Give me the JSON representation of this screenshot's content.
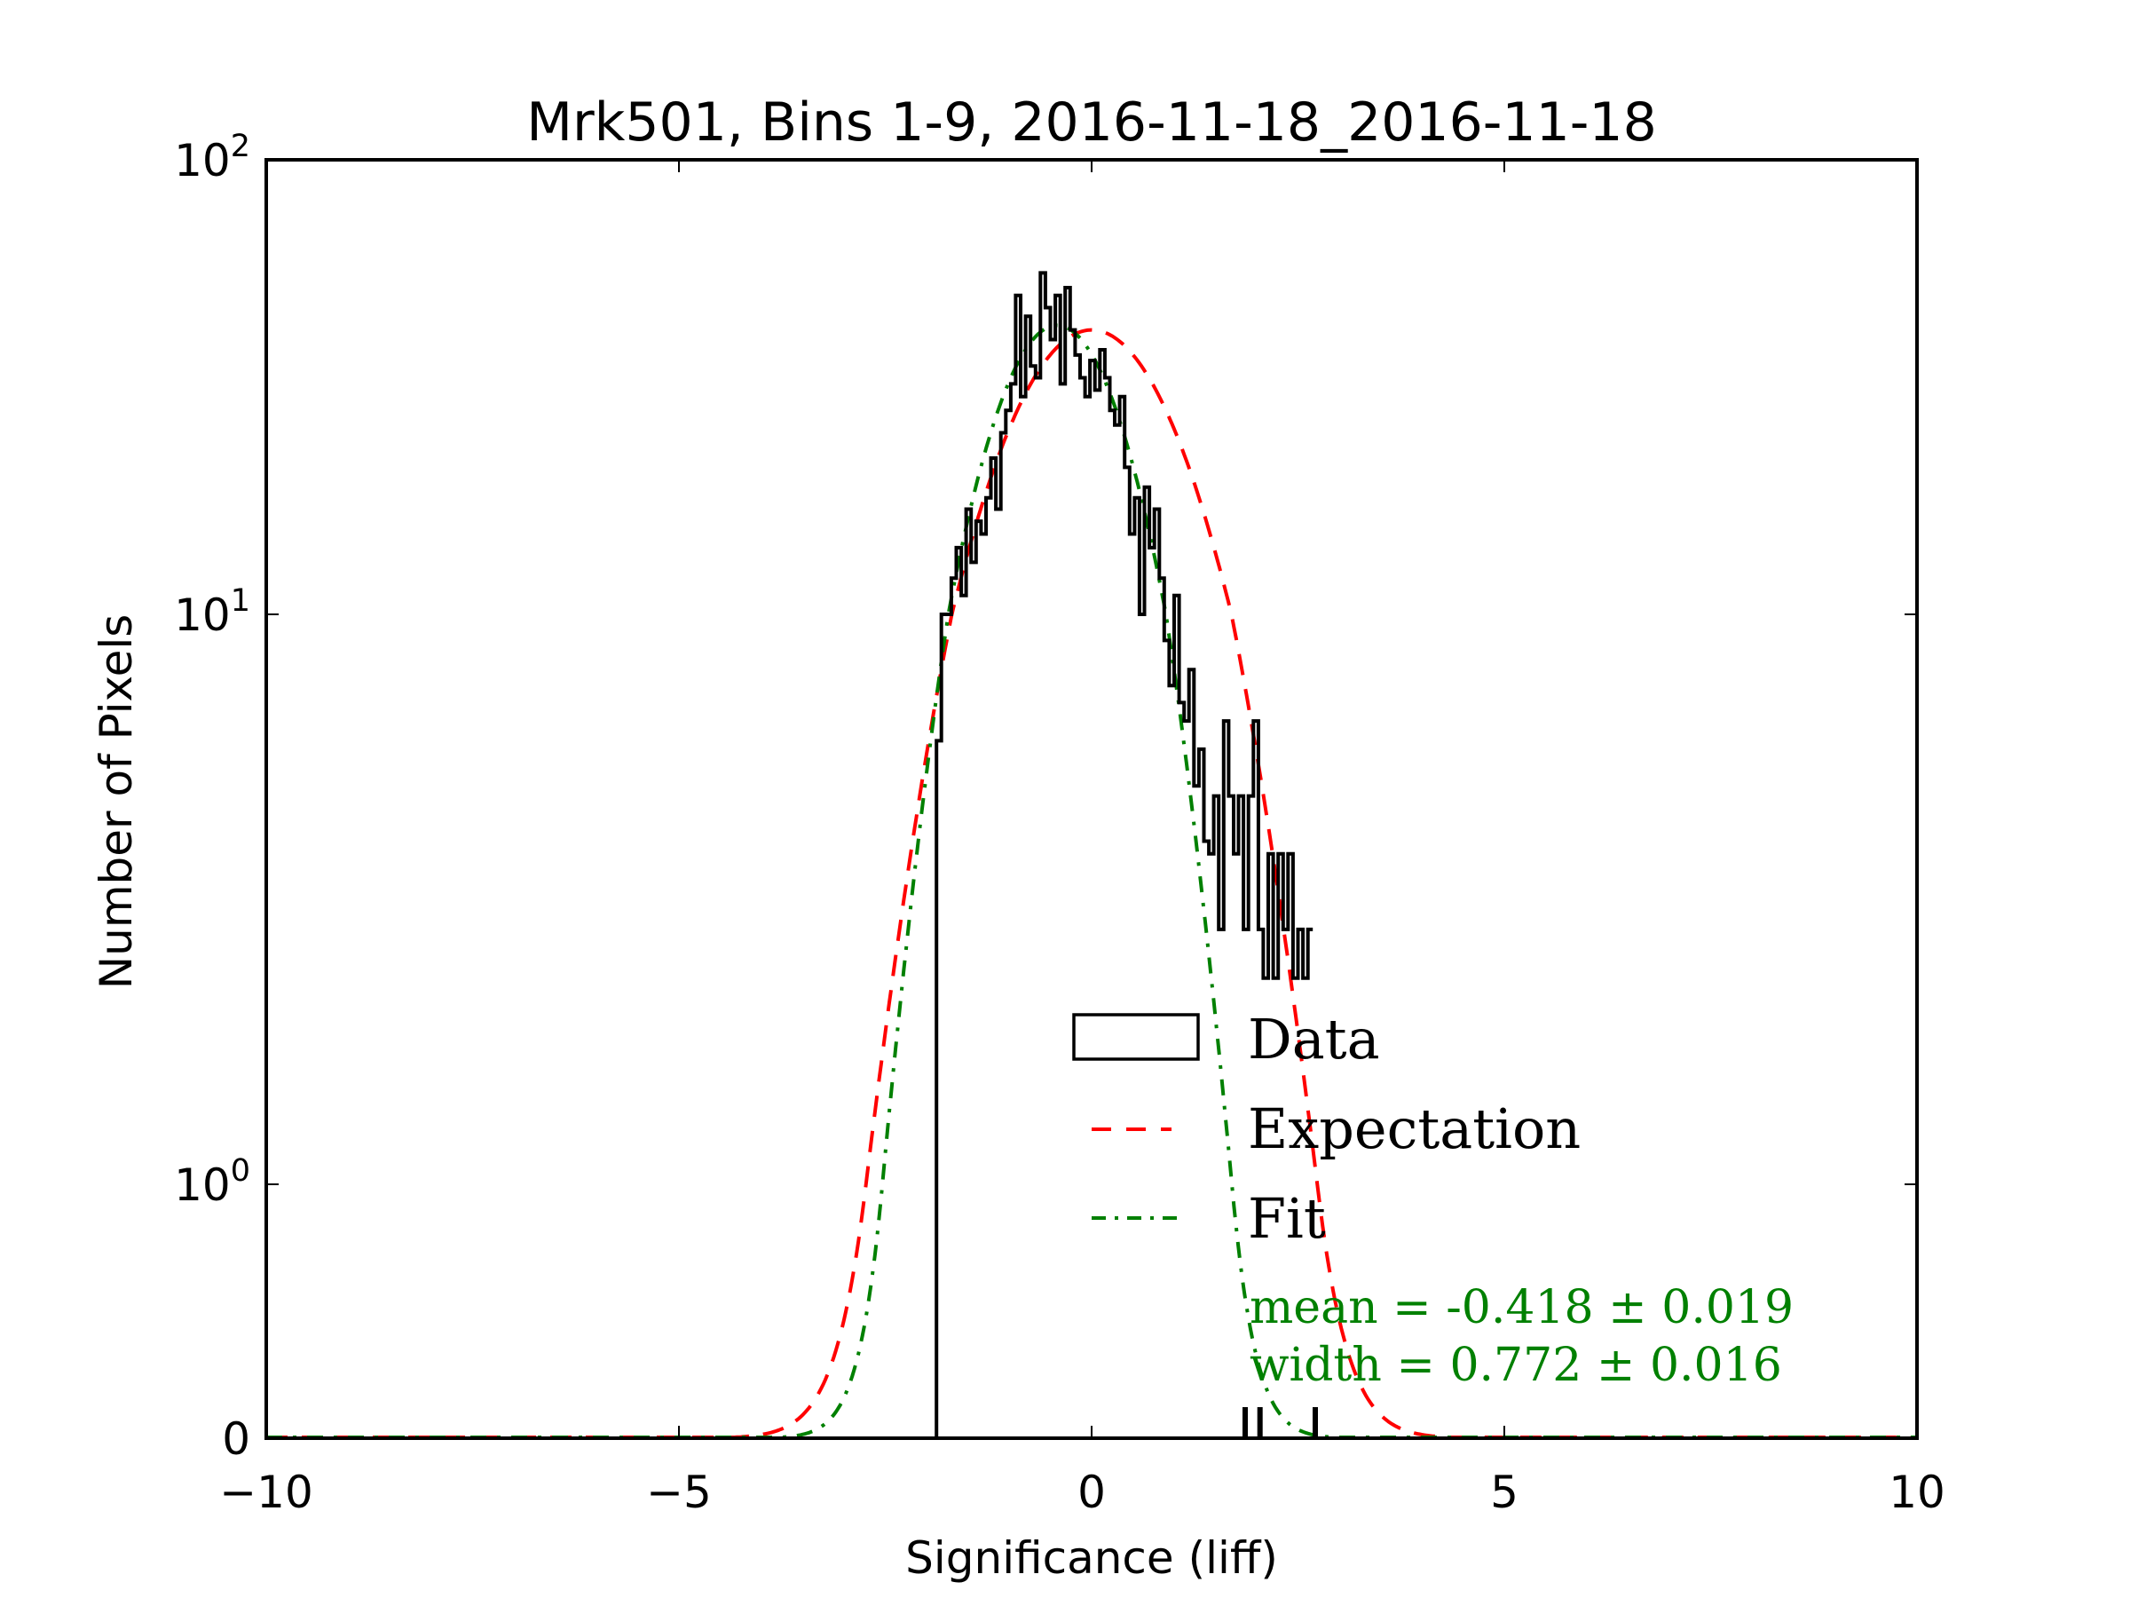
{
  "chart_data": {
    "type": "bar",
    "title": "Mrk501, Bins 1-9, 2016-11-18_2016-11-18",
    "xlabel": "Significance (liff)",
    "ylabel": "Number of Pixels",
    "xlim": [
      -10,
      10
    ],
    "ylim": [
      0,
      100
    ],
    "yscale": "symlog",
    "x_ticks": [
      {
        "value": -10,
        "label": "−10"
      },
      {
        "value": -5,
        "label": "−5"
      },
      {
        "value": 0,
        "label": "0"
      },
      {
        "value": 5,
        "label": "5"
      },
      {
        "value": 10,
        "label": "10"
      }
    ],
    "y_ticks": [
      {
        "value": 0,
        "base": "0",
        "exp": ""
      },
      {
        "value": 1,
        "base": "10",
        "exp": "0"
      },
      {
        "value": 10,
        "base": "10",
        "exp": "1"
      },
      {
        "value": 100,
        "base": "10",
        "exp": "2"
      }
    ],
    "histogram": {
      "name": "Data",
      "color": "#000000",
      "bin_start": -1.88,
      "bin_width": 0.06,
      "values": [
        6,
        10,
        10,
        12,
        14,
        11,
        17,
        13,
        16,
        15,
        18,
        22,
        17,
        25,
        28,
        32,
        50,
        30,
        45,
        35,
        33,
        56,
        47,
        40,
        50,
        32,
        52,
        42,
        37,
        33,
        30,
        36,
        31,
        38,
        33,
        28,
        26,
        30,
        21,
        15,
        18,
        10,
        19,
        14,
        17,
        12,
        9,
        7.5,
        11,
        7,
        6.5,
        8,
        5,
        5.8,
        4,
        3.8,
        4.8,
        2.8,
        6.5,
        4.8,
        3.8,
        4.8,
        2.8,
        4.8,
        6.5,
        2.8,
        2.3,
        3.8,
        2.3,
        3.8,
        2.8,
        3.8,
        2.3,
        2.8,
        2.3,
        2.8
      ],
      "zero_edges": [
        1.86,
        2.04,
        2.71
      ]
    },
    "series": [
      {
        "name": "Expectation",
        "color": "#ff0000",
        "style": "dashed",
        "mean": 0.0,
        "sigma": 1.0,
        "amplitude": 42
      },
      {
        "name": "Fit",
        "color": "#008000",
        "style": "dashdot",
        "mean": -0.418,
        "sigma": 0.772,
        "amplitude": 43
      }
    ],
    "legend": {
      "position": "lower-right",
      "entries": [
        {
          "label": "Data",
          "symbol": "box",
          "color": "#000000"
        },
        {
          "label": "Expectation",
          "symbol": "dashed",
          "color": "#ff0000"
        },
        {
          "label": "Fit",
          "symbol": "dashdot",
          "color": "#008000"
        }
      ]
    },
    "annotations": {
      "color": "#008000",
      "mean_text": "mean = -0.418 ± 0.019",
      "width_text": "width = 0.772 ± 0.016"
    }
  }
}
